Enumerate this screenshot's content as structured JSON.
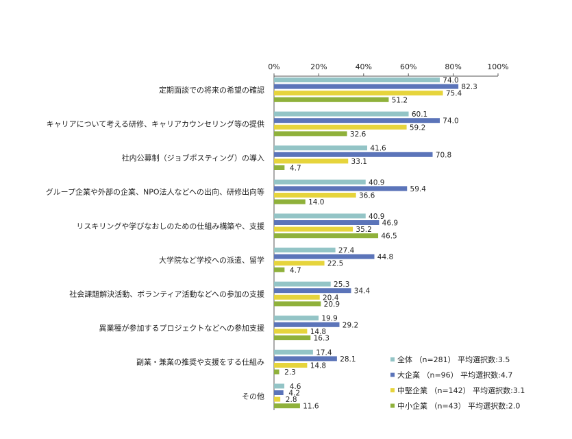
{
  "chart_data": {
    "type": "bar",
    "orientation": "horizontal",
    "title": "",
    "xlabel": "",
    "ylabel": "",
    "xlim": [
      0,
      100
    ],
    "ticks": [
      "0%",
      "20%",
      "40%",
      "60%",
      "80%",
      "100%"
    ],
    "grid": false,
    "legend_position": "bottom-right",
    "categories": [
      "定期面談での将来の希望の確認",
      "キャリアについて考える研修、キャリアカウンセリング等の提供",
      "社内公募制（ジョブポスティング）の導入",
      "グループ企業や外部の企業、NPO法人などへの出向、研修出向等",
      "リスキリングや学びなおしのための仕組み構築や、支援",
      "大学院など学校への派遣、留学",
      "社会課題解決活動、ボランティア活動などへの参加の支援",
      "異業種が参加するプロジェクトなどへの参加支援",
      "副業・兼業の推奨や支援をする仕組み",
      "その他"
    ],
    "series": [
      {
        "name": "全体 （n=281） 平均選択数:3.5",
        "color": "#93c4c6",
        "values": [
          74.0,
          60.1,
          41.6,
          40.9,
          40.9,
          27.4,
          25.3,
          19.9,
          17.4,
          4.6
        ]
      },
      {
        "name": "大企業 （n=96） 平均選択数:4.7",
        "color": "#5b74b9",
        "values": [
          82.3,
          74.0,
          70.8,
          59.4,
          46.9,
          44.8,
          34.4,
          29.2,
          28.1,
          4.2
        ]
      },
      {
        "name": "中堅企業 （n=142） 平均選択数:3.1",
        "color": "#e6d43c",
        "values": [
          75.4,
          59.2,
          33.1,
          36.6,
          35.2,
          22.5,
          20.4,
          14.8,
          14.8,
          2.8
        ]
      },
      {
        "name": "中小企業 （n=43） 平均選択数:2.0",
        "color": "#8fb13b",
        "values": [
          51.2,
          32.6,
          4.7,
          14.0,
          46.5,
          4.7,
          20.9,
          16.3,
          2.3,
          11.6
        ]
      }
    ]
  }
}
